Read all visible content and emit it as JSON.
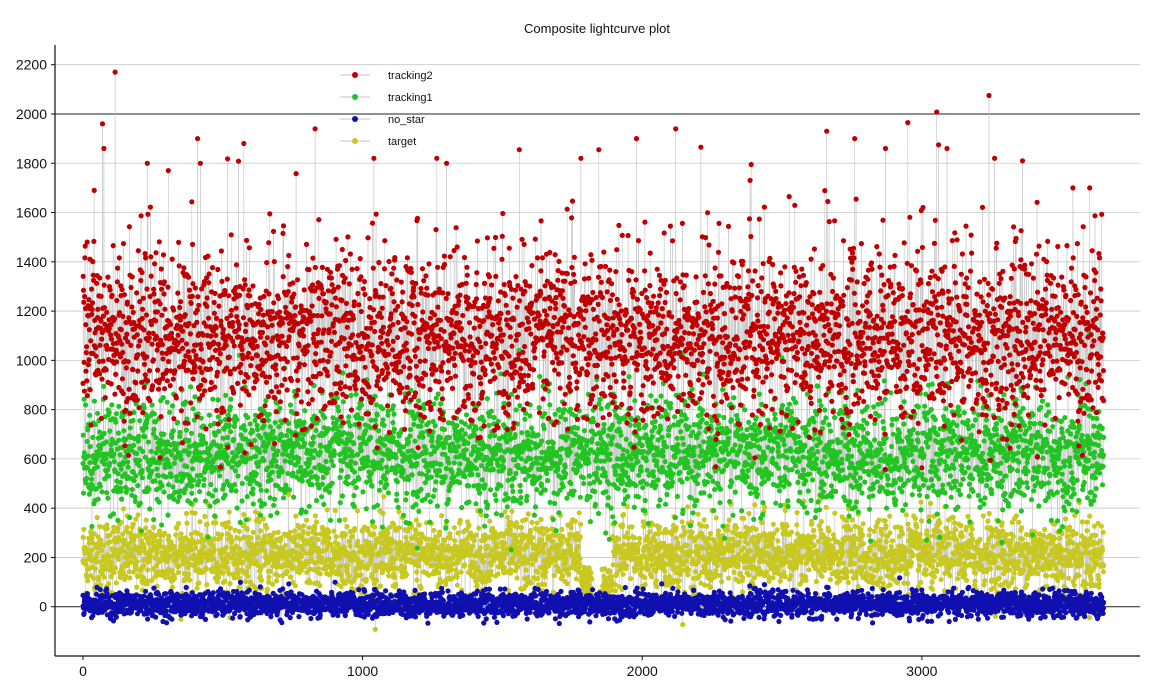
{
  "chart_data": {
    "type": "scatter",
    "title": "Composite lightcurve plot",
    "xlabel": "",
    "ylabel": "",
    "xlim": [
      -100,
      3780
    ],
    "ylim": [
      -200,
      2280
    ],
    "x_ticks": [
      0,
      1000,
      2000,
      3000
    ],
    "y_ticks": [
      0,
      200,
      400,
      600,
      800,
      1000,
      1200,
      1400,
      1600,
      1800,
      2000,
      2200
    ],
    "grid": true,
    "legend_position": "top-left",
    "point_count_per_series": 3650,
    "x_range": [
      0,
      3650
    ],
    "series": [
      {
        "name": "tracking2",
        "color": "#c00000",
        "mean": 1080,
        "spread": 170,
        "peaks": [
          [
            15,
            1480
          ],
          [
            40,
            1690
          ],
          [
            70,
            1960
          ],
          [
            75,
            1860
          ],
          [
            115,
            2170
          ],
          [
            230,
            1800
          ],
          [
            305,
            1770
          ],
          [
            410,
            1900
          ],
          [
            420,
            1800
          ],
          [
            575,
            1880
          ],
          [
            830,
            1940
          ],
          [
            1040,
            1820
          ],
          [
            1265,
            1820
          ],
          [
            1300,
            1800
          ],
          [
            1560,
            1855
          ],
          [
            1780,
            1820
          ],
          [
            1845,
            1855
          ],
          [
            1980,
            1900
          ],
          [
            2120,
            1940
          ],
          [
            2210,
            1865
          ],
          [
            2390,
            1795
          ],
          [
            2660,
            1930
          ],
          [
            2760,
            1900
          ],
          [
            2870,
            1860
          ],
          [
            2950,
            1965
          ],
          [
            3060,
            1875
          ],
          [
            3090,
            1860
          ],
          [
            3240,
            2075
          ],
          [
            3260,
            1820
          ],
          [
            3360,
            1810
          ],
          [
            3540,
            1700
          ],
          [
            3600,
            1700
          ]
        ]
      },
      {
        "name": "tracking1",
        "color": "#22c422",
        "mean": 620,
        "spread": 115,
        "peaks": [
          [
            560,
            1020
          ],
          [
            1560,
            1040
          ],
          [
            2500,
            1010
          ],
          [
            3480,
            1120
          ],
          [
            3600,
            1110
          ]
        ]
      },
      {
        "name": "no_star",
        "color": "#1010b0",
        "mean": 10,
        "spread": 25,
        "peaks": []
      },
      {
        "name": "target",
        "color": "#c8c820",
        "mean": 210,
        "spread": 75,
        "gap": [
          1820,
          1850
        ],
        "peaks": []
      }
    ],
    "legend_order": [
      "tracking2",
      "tracking1",
      "no_star",
      "target"
    ]
  }
}
